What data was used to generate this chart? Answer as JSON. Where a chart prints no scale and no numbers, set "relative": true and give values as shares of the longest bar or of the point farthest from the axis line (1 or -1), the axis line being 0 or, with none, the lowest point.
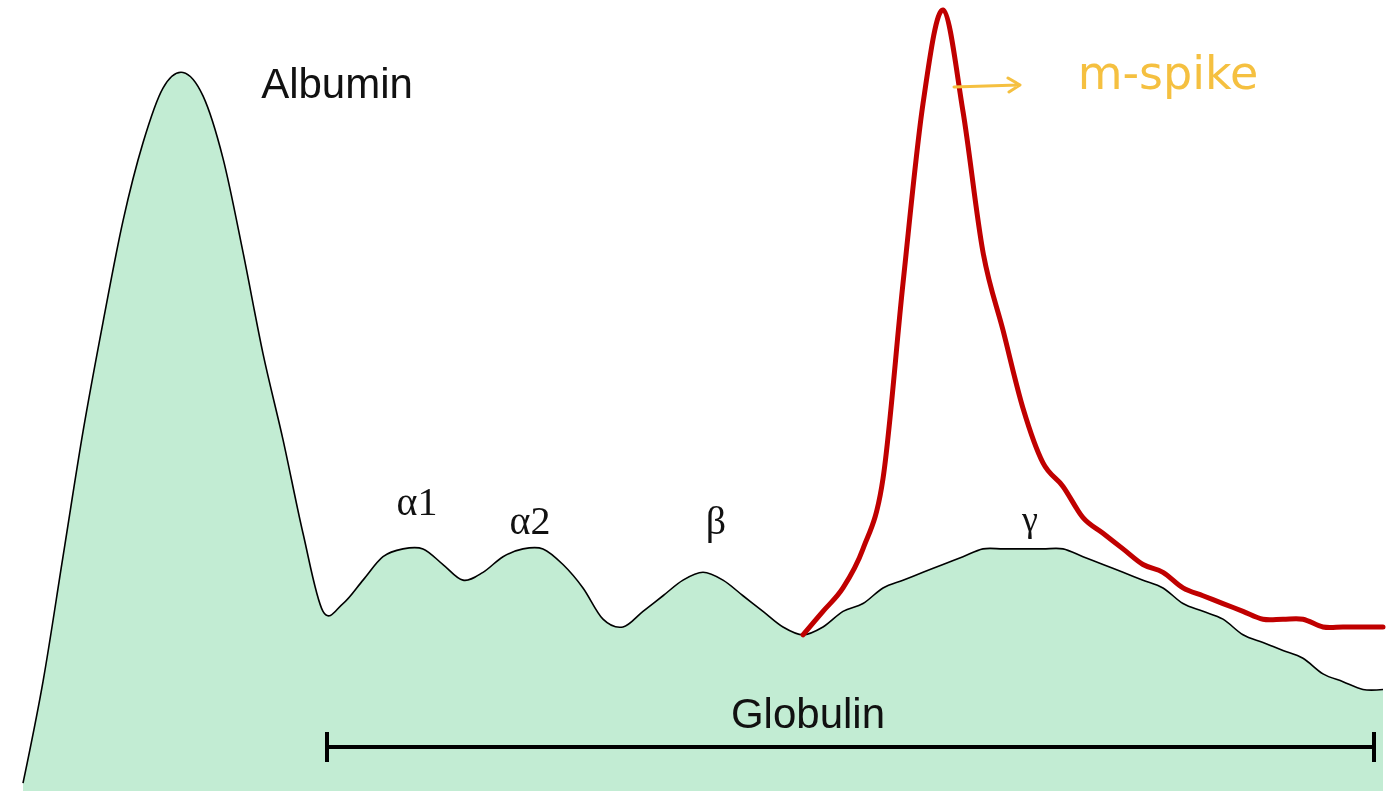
{
  "chart_data": {
    "type": "area",
    "relative": true,
    "categories": [
      null,
      null,
      null,
      null,
      null,
      null,
      null,
      null,
      null,
      null,
      null,
      null,
      null,
      null,
      null,
      null,
      null,
      null,
      null,
      null,
      null,
      null,
      null,
      null,
      null,
      null,
      null,
      null,
      null,
      null,
      null,
      null,
      null,
      null,
      null,
      null,
      null,
      null,
      null,
      null,
      null,
      null,
      null,
      null,
      null,
      null,
      null,
      null,
      null,
      null,
      null,
      null,
      null,
      null,
      null,
      null,
      null,
      null,
      null,
      null,
      null,
      null,
      null,
      null,
      null,
      null,
      null,
      null,
      null
    ],
    "series": [
      {
        "color": "#a8e4c0",
        "values": [
          0.01,
          0.14,
          0.3,
          0.46,
          0.6,
          0.73,
          0.83,
          0.9,
          0.92,
          0.89,
          0.81,
          0.69,
          0.56,
          0.45,
          0.33,
          0.23,
          0.24,
          0.27,
          0.3,
          0.31,
          0.31,
          0.29,
          0.27,
          0.28,
          0.3,
          0.31,
          0.31,
          0.29,
          0.26,
          0.22,
          0.21,
          0.23,
          0.25,
          0.27,
          0.28,
          0.27,
          0.25,
          0.23,
          0.21,
          0.2,
          0.21,
          0.23,
          0.24,
          0.26,
          0.27,
          0.28,
          0.29,
          0.3,
          0.31,
          0.31,
          0.31,
          0.31,
          0.31,
          0.3,
          0.29,
          0.28,
          0.27,
          0.26,
          0.24,
          0.23,
          0.22,
          0.2,
          0.19,
          0.18,
          0.17,
          0.15,
          0.14,
          0.13,
          0.13
        ]
      },
      {
        "type": "line",
        "color": "#c00000",
        "values": [
          null,
          null,
          null,
          null,
          null,
          null,
          null,
          null,
          null,
          null,
          null,
          null,
          null,
          null,
          null,
          null,
          null,
          null,
          null,
          null,
          null,
          null,
          null,
          null,
          null,
          null,
          null,
          null,
          null,
          null,
          null,
          null,
          null,
          null,
          null,
          null,
          null,
          null,
          null,
          0.2,
          0.23,
          0.26,
          0.31,
          0.4,
          0.65,
          0.88,
          1.0,
          0.87,
          0.69,
          0.59,
          0.49,
          0.42,
          0.39,
          0.35,
          0.33,
          0.31,
          0.29,
          0.28,
          0.26,
          0.25,
          0.24,
          0.23,
          0.22,
          0.22,
          0.22,
          0.21,
          0.21,
          0.21,
          0.21
        ]
      }
    ],
    "annotations": [
      "Albumin",
      "α1",
      "α2",
      "β",
      "γ",
      "Globulin",
      "m-spike"
    ]
  }
}
